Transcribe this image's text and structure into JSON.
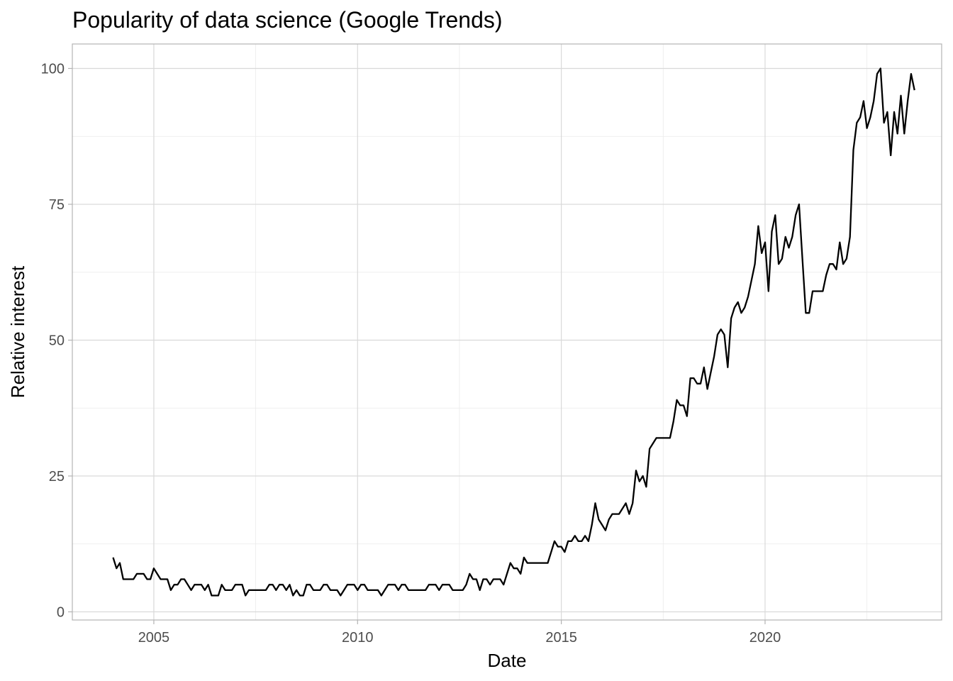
{
  "chart_data": {
    "type": "line",
    "title": "Popularity of data science (Google Trends)",
    "xlabel": "Date",
    "ylabel": "Relative interest",
    "x_start": "2004-01",
    "x_step": "1 month",
    "x_ticks": [
      "2005",
      "2010",
      "2015",
      "2020"
    ],
    "y_ticks": [
      0,
      25,
      50,
      75,
      100
    ],
    "ylim": [
      -1.5,
      104.5
    ],
    "xlim": [
      "2003-01",
      "2024-05"
    ],
    "grid": true,
    "legend": "none",
    "colors": {
      "line": "#000000",
      "grid_major": "#d9d9d9",
      "grid_minor": "#ebebeb",
      "panel_border": "#b3b3b3"
    },
    "series": [
      {
        "values": [
          10,
          8,
          9,
          6,
          6,
          6,
          6,
          7,
          7,
          7,
          6,
          6,
          8,
          7,
          6,
          6,
          6,
          4,
          5,
          5,
          6,
          6,
          5,
          4,
          5,
          5,
          5,
          4,
          5,
          3,
          3,
          3,
          5,
          4,
          4,
          4,
          5,
          5,
          5,
          3,
          4,
          4,
          4,
          4,
          4,
          4,
          5,
          5,
          4,
          5,
          5,
          4,
          5,
          3,
          4,
          3,
          3,
          5,
          5,
          4,
          4,
          4,
          5,
          5,
          4,
          4,
          4,
          3,
          4,
          5,
          5,
          5,
          4,
          5,
          5,
          4,
          4,
          4,
          4,
          3,
          4,
          5,
          5,
          5,
          4,
          5,
          5,
          4,
          4,
          4,
          4,
          4,
          4,
          5,
          5,
          5,
          4,
          5,
          5,
          5,
          4,
          4,
          4,
          4,
          5,
          7,
          6,
          6,
          4,
          6,
          6,
          5,
          6,
          6,
          6,
          5,
          7,
          9,
          8,
          8,
          7,
          10,
          9,
          9,
          9,
          9,
          9,
          9,
          9,
          11,
          13,
          12,
          12,
          11,
          13,
          13,
          14,
          13,
          13,
          14,
          13,
          16,
          20,
          17,
          16,
          15,
          17,
          18,
          18,
          18,
          19,
          20,
          18,
          20,
          26,
          24,
          25,
          23,
          30,
          31,
          32,
          32,
          32,
          32,
          32,
          35,
          39,
          38,
          38,
          36,
          43,
          43,
          42,
          42,
          45,
          41,
          44,
          47,
          51,
          52,
          51,
          45,
          54,
          56,
          57,
          55,
          56,
          58,
          61,
          64,
          71,
          66,
          68,
          59,
          70,
          73,
          64,
          65,
          69,
          67,
          69,
          73,
          75,
          65,
          55,
          55,
          59,
          59,
          59,
          59,
          62,
          64,
          64,
          63,
          68,
          64,
          65,
          69,
          85,
          90,
          91,
          94,
          89,
          91,
          94,
          99,
          100,
          90,
          92,
          84,
          92,
          88,
          95,
          88,
          94,
          99,
          96
        ]
      }
    ]
  }
}
